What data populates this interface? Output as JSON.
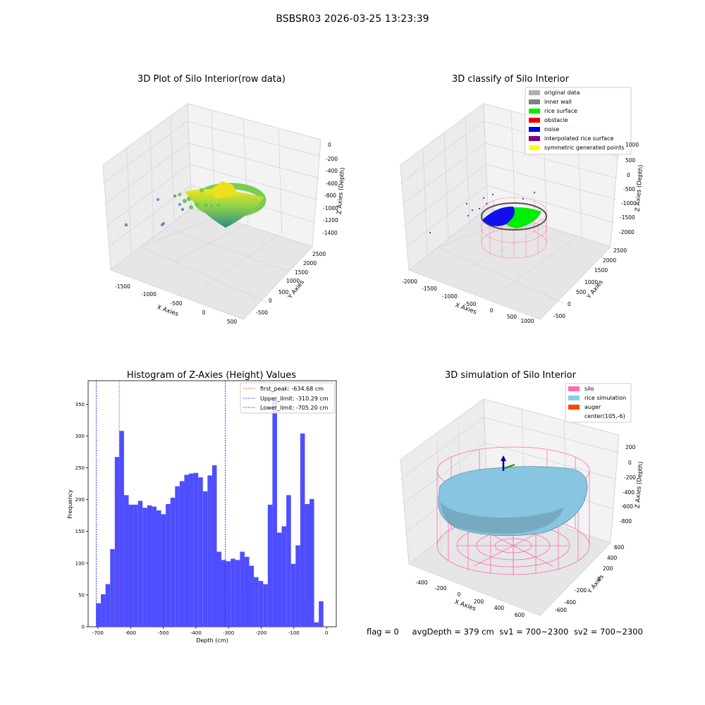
{
  "suptitle": "BSBSR03 2026-03-25 13:23:39",
  "footer": {
    "flag": "flag = 0",
    "avg_depth": "avgDepth = 379 cm",
    "sv1": "sv1 = 700~2300",
    "sv2": "sv2 = 700~2300"
  },
  "chart_data": [
    {
      "type": "scatter",
      "title": "3D Plot of Silo Interior(row data)",
      "xlabel": "X Axies",
      "ylabel": "Y Axies",
      "zlabel": "Z Axies (Depth)",
      "x_ticks": [
        "-1500",
        "-1000",
        "-500",
        "0",
        "500"
      ],
      "y_ticks": [
        "-500",
        "0",
        "500",
        "1000",
        "1500",
        "2000",
        "2500"
      ],
      "z_ticks": [
        "0",
        "-200",
        "-400",
        "-600",
        "-800",
        "-1000",
        "-1200",
        "-1400"
      ],
      "colors": {
        "low": "#2a8a8c",
        "mid": "#7ccf4f",
        "high": "#f0e51c",
        "outlier": "#5f8fbf"
      }
    },
    {
      "type": "scatter",
      "title": "3D classify of Silo Interior",
      "xlabel": "X Axies",
      "ylabel": "Y Axies",
      "zlabel": "Z Axies (Depth)",
      "x_ticks": [
        "-2000",
        "-1500",
        "-1000",
        "-500",
        "0",
        "500",
        "1000"
      ],
      "y_ticks": [
        "-500",
        "0",
        "500",
        "1000",
        "1500",
        "2000",
        "2500"
      ],
      "z_ticks": [
        "1000",
        "500",
        "0",
        "-500",
        "-1000",
        "-1500",
        "-2000"
      ],
      "legend_position": "top-right",
      "legend": [
        {
          "label": "original data",
          "color": "#b0b0b0"
        },
        {
          "label": "inner wall",
          "color": "#808080"
        },
        {
          "label": "rice surface",
          "color": "#00ee00"
        },
        {
          "label": "obstacle",
          "color": "#ee0000"
        },
        {
          "label": "noise",
          "color": "#0000ee"
        },
        {
          "label": "interpolated rice surface",
          "color": "#800080"
        },
        {
          "label": "symmetric generated points",
          "color": "#ffff00"
        }
      ]
    },
    {
      "type": "bar",
      "title": "Histogram of Z-Axies (Height) Values",
      "xlabel": "Depth (cm)",
      "ylabel": "Frequency",
      "xlim": [
        -730,
        30
      ],
      "ylim": [
        0,
        387
      ],
      "bin_start": -705.2,
      "bin_width": 14.2,
      "values": [
        37,
        51,
        67,
        122,
        267,
        308,
        207,
        192,
        192,
        198,
        187,
        191,
        189,
        183,
        177,
        193,
        203,
        221,
        229,
        239,
        241,
        242,
        235,
        213,
        238,
        254,
        118,
        105,
        103,
        107,
        105,
        118,
        110,
        96,
        78,
        72,
        67,
        192,
        357,
        148,
        158,
        207,
        99,
        128,
        304,
        193,
        201,
        7,
        40
      ],
      "x_ticks": [
        -700,
        -600,
        -500,
        -400,
        -300,
        -200,
        -100,
        0
      ],
      "y_ticks": [
        0,
        50,
        100,
        150,
        200,
        250,
        300,
        350
      ],
      "bar_color": "#4e4eff",
      "lines": [
        {
          "label": "first_peak: -634.68 cm",
          "x": -634.68,
          "color": "#ff2020"
        },
        {
          "label": "Upper_limit: -310.29 cm",
          "x": -310.29,
          "color": "#1010ff"
        },
        {
          "label": "Lower_limit: -705.20 cm",
          "x": -705.2,
          "color": "#1010ff"
        }
      ],
      "legend_position": "top-right"
    },
    {
      "type": "surface",
      "title": "3D simulation of Silo Interior",
      "xlabel": "X Axies",
      "ylabel": "Y Axies",
      "zlabel": "Z Axies (Depth)",
      "x_ticks": [
        "-400",
        "-200",
        "0",
        "200",
        "400",
        "600"
      ],
      "y_ticks": [
        "-600",
        "-400",
        "-200",
        "0",
        "200",
        "400",
        "600"
      ],
      "z_ticks": [
        "200",
        "0",
        "-200",
        "-400",
        "-600",
        "-800"
      ],
      "legend_position": "top-right",
      "legend": [
        {
          "label": "silo",
          "color": "#ff69b4"
        },
        {
          "label": "rice simulation",
          "color": "#87ceeb"
        },
        {
          "label": "auger",
          "color": "#ff4500"
        },
        {
          "label": "center(105,-6)",
          "color": ""
        }
      ]
    }
  ]
}
